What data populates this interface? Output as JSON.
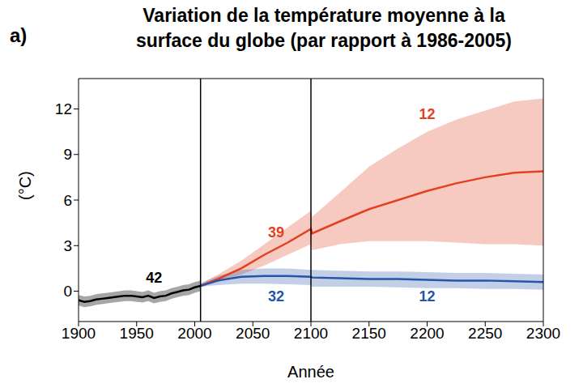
{
  "chart_data": {
    "type": "line",
    "panel_label": "a)",
    "title": [
      "Variation de la température moyenne à la",
      "surface du globe (par rapport à 1986-2005)"
    ],
    "x_label": "Année",
    "y_label": "(°C)",
    "x": [
      1900,
      1905,
      1910,
      1915,
      1920,
      1925,
      1930,
      1935,
      1940,
      1945,
      1950,
      1955,
      1960,
      1965,
      1970,
      1975,
      1980,
      1985,
      1990,
      1995,
      2000,
      2005,
      2020,
      2040,
      2060,
      2080,
      2100,
      2101,
      2125,
      2150,
      2175,
      2200,
      2225,
      2250,
      2275,
      2300
    ],
    "xlim": [
      1900,
      2300
    ],
    "xticks": [
      1900,
      1950,
      2000,
      2050,
      2100,
      2150,
      2200,
      2250,
      2300
    ],
    "ylim": [
      -2,
      14
    ],
    "yticks": [
      0,
      3,
      6,
      9,
      12
    ],
    "grid": false,
    "vlines": [
      2005,
      2100
    ],
    "series": [
      {
        "color": "#000000",
        "values": [
          -0.6,
          -0.7,
          -0.65,
          -0.55,
          -0.5,
          -0.45,
          -0.4,
          -0.35,
          -0.3,
          -0.3,
          -0.35,
          -0.4,
          -0.3,
          -0.45,
          -0.35,
          -0.3,
          -0.15,
          -0.05,
          0.05,
          0.1,
          0.25,
          0.35,
          null,
          null,
          null,
          null,
          null,
          null,
          null,
          null,
          null,
          null,
          null,
          null,
          null,
          null
        ],
        "lower": [
          -0.95,
          -1.05,
          -1.0,
          -0.9,
          -0.85,
          -0.8,
          -0.75,
          -0.7,
          -0.65,
          -0.65,
          -0.7,
          -0.75,
          -0.65,
          -0.8,
          -0.7,
          -0.65,
          -0.5,
          -0.4,
          -0.3,
          -0.25,
          -0.1,
          0.0,
          null,
          null,
          null,
          null,
          null,
          null,
          null,
          null,
          null,
          null,
          null,
          null,
          null,
          null
        ],
        "upper": [
          -0.25,
          -0.35,
          -0.3,
          -0.2,
          -0.15,
          -0.1,
          -0.05,
          0.0,
          0.05,
          0.05,
          0.0,
          -0.05,
          0.05,
          -0.1,
          0.0,
          0.05,
          0.2,
          0.3,
          0.4,
          0.45,
          0.6,
          0.7,
          null,
          null,
          null,
          null,
          null,
          null,
          null,
          null,
          null,
          null,
          null,
          null,
          null,
          null
        ]
      },
      {
        "color": "#e3401f",
        "values": [
          null,
          null,
          null,
          null,
          null,
          null,
          null,
          null,
          null,
          null,
          null,
          null,
          null,
          null,
          null,
          null,
          null,
          null,
          null,
          null,
          null,
          0.35,
          0.8,
          1.5,
          2.4,
          3.2,
          4.1,
          3.8,
          4.6,
          5.4,
          6.0,
          6.6,
          7.1,
          7.5,
          7.8,
          7.9
        ],
        "lower": [
          null,
          null,
          null,
          null,
          null,
          null,
          null,
          null,
          null,
          null,
          null,
          null,
          null,
          null,
          null,
          null,
          null,
          null,
          null,
          null,
          null,
          0.3,
          0.6,
          1.1,
          1.7,
          2.4,
          3.1,
          2.7,
          3.1,
          3.3,
          3.3,
          3.3,
          3.2,
          3.1,
          3.1,
          3.0
        ],
        "upper": [
          null,
          null,
          null,
          null,
          null,
          null,
          null,
          null,
          null,
          null,
          null,
          null,
          null,
          null,
          null,
          null,
          null,
          null,
          null,
          null,
          null,
          0.5,
          1.1,
          2.0,
          3.1,
          4.2,
          5.3,
          4.9,
          6.5,
          8.2,
          9.4,
          10.5,
          11.3,
          11.9,
          12.5,
          12.7
        ]
      },
      {
        "color": "#2554a8",
        "values": [
          null,
          null,
          null,
          null,
          null,
          null,
          null,
          null,
          null,
          null,
          null,
          null,
          null,
          null,
          null,
          null,
          null,
          null,
          null,
          null,
          null,
          0.35,
          0.7,
          0.95,
          1.0,
          1.0,
          0.95,
          0.9,
          0.85,
          0.8,
          0.8,
          0.75,
          0.7,
          0.7,
          0.65,
          0.6
        ],
        "lower": [
          null,
          null,
          null,
          null,
          null,
          null,
          null,
          null,
          null,
          null,
          null,
          null,
          null,
          null,
          null,
          null,
          null,
          null,
          null,
          null,
          null,
          0.3,
          0.4,
          0.5,
          0.5,
          0.45,
          0.4,
          0.3,
          0.3,
          0.3,
          0.25,
          0.2,
          0.2,
          0.15,
          0.15,
          0.1
        ],
        "upper": [
          null,
          null,
          null,
          null,
          null,
          null,
          null,
          null,
          null,
          null,
          null,
          null,
          null,
          null,
          null,
          null,
          null,
          null,
          null,
          null,
          null,
          0.5,
          1.0,
          1.4,
          1.5,
          1.5,
          1.4,
          1.4,
          1.35,
          1.3,
          1.3,
          1.25,
          1.2,
          1.2,
          1.15,
          1.1
        ]
      }
    ],
    "annotations": [
      {
        "text": "42",
        "x": 1965,
        "y": 0.9,
        "color": "#000000"
      },
      {
        "text": "39",
        "x": 2070,
        "y": 3.9,
        "color": "#e3401f"
      },
      {
        "text": "32",
        "x": 2070,
        "y": -0.3,
        "color": "#2554a8"
      },
      {
        "text": "12",
        "x": 2200,
        "y": 11.7,
        "color": "#e3401f"
      },
      {
        "text": "12",
        "x": 2200,
        "y": -0.3,
        "color": "#2554a8"
      }
    ]
  }
}
